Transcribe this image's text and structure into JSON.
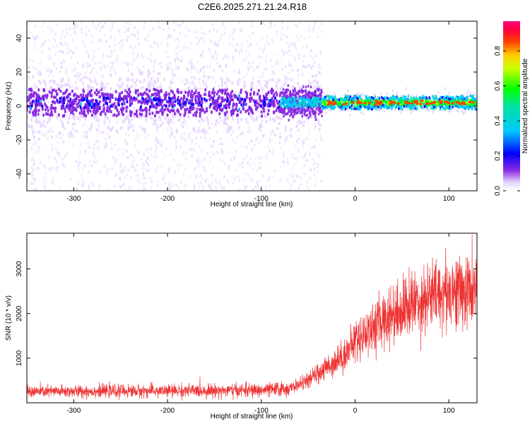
{
  "title": "C2E6.2025.271.21.24.R18",
  "chart_data": [
    {
      "type": "heatmap",
      "xlabel": "Height of straight line (km)",
      "ylabel": "Frequency (Hz)",
      "xlim": [
        -350,
        130
      ],
      "ylim": [
        -50,
        50
      ],
      "xticks": [
        -300,
        -200,
        -100,
        0,
        100
      ],
      "xtick_labels": [
        "-300",
        "-200",
        "-100",
        "0",
        "100"
      ],
      "yticks": [
        -40,
        -20,
        0,
        20,
        40
      ],
      "ytick_labels": [
        "-40",
        "-20",
        "0",
        "20",
        "40"
      ],
      "colorbar": {
        "label": "Normalized spectral amplitude",
        "range": [
          0,
          0.97
        ],
        "ticks": [
          0,
          0.2,
          0.4,
          0.6,
          0.8
        ],
        "tick_labels": [
          "0.0",
          "0.2",
          "0.4",
          "0.6",
          "0.8"
        ],
        "colormap": "rainbow (white-violet-blue-cyan-green-yellow-red-magenta)"
      },
      "description_points": {
        "diffuse_region_x": [
          -350,
          -35
        ],
        "dense_band_center_hz": 2,
        "peak_band_x": [
          -35,
          130
        ],
        "peak_band_center_hz": 2
      }
    },
    {
      "type": "line",
      "xlabel": "Height of straight line (km)",
      "ylabel": "SNR (10 * v/v)",
      "xlim": [
        -350,
        130
      ],
      "ylim": [
        0,
        3800
      ],
      "xticks": [
        -300,
        -200,
        -100,
        0,
        100
      ],
      "xtick_labels": [
        "-300",
        "-200",
        "-100",
        "0",
        "100"
      ],
      "yticks": [
        1000,
        2000,
        3000
      ],
      "ytick_labels": [
        "1000",
        "2000",
        "3000"
      ],
      "series_color": "#ee3333",
      "trend": {
        "x": [
          -350,
          -100,
          -70,
          -50,
          -30,
          -10,
          0,
          20,
          40,
          60,
          80,
          100,
          130
        ],
        "y": [
          250,
          280,
          320,
          500,
          800,
          1100,
          1400,
          1700,
          2000,
          2200,
          2400,
          2500,
          2500
        ]
      }
    }
  ]
}
